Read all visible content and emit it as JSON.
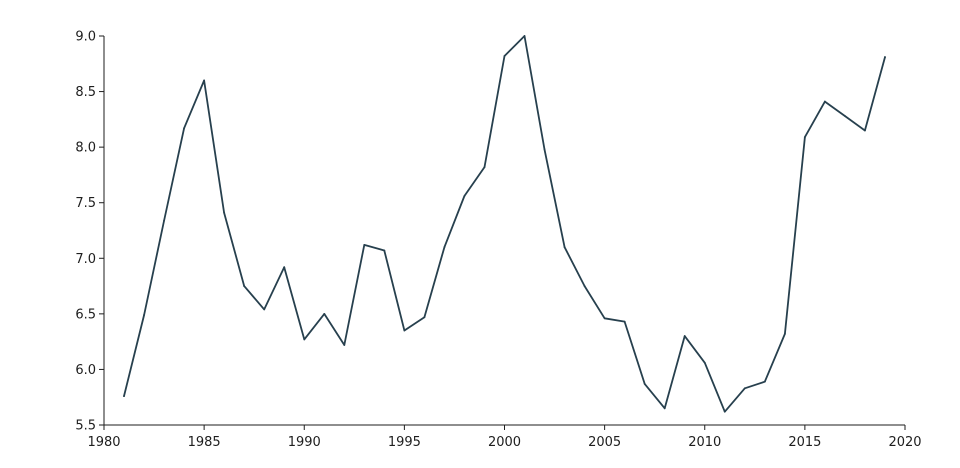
{
  "chart_data": {
    "type": "line",
    "title": "",
    "xlabel": "",
    "ylabel": "",
    "xlim": [
      1980,
      2020
    ],
    "ylim": [
      5.5,
      9.0
    ],
    "x_ticks": [
      {
        "value": 1980,
        "label": "1980"
      },
      {
        "value": 1985,
        "label": "1985"
      },
      {
        "value": 1990,
        "label": "1990"
      },
      {
        "value": 1995,
        "label": "1995"
      },
      {
        "value": 2000,
        "label": "2000"
      },
      {
        "value": 2005,
        "label": "2005"
      },
      {
        "value": 2010,
        "label": "2010"
      },
      {
        "value": 2015,
        "label": "2015"
      },
      {
        "value": 2020,
        "label": "2020"
      }
    ],
    "y_ticks": [
      {
        "value": 5.5,
        "label": "5.5"
      },
      {
        "value": 6.0,
        "label": "6.0"
      },
      {
        "value": 6.5,
        "label": "6.5"
      },
      {
        "value": 7.0,
        "label": "7.0"
      },
      {
        "value": 7.5,
        "label": "7.5"
      },
      {
        "value": 8.0,
        "label": "8.0"
      },
      {
        "value": 8.5,
        "label": "8.5"
      },
      {
        "value": 9.0,
        "label": "9.0"
      }
    ],
    "grid": false,
    "legend": "none",
    "line_color": "#27404e",
    "series": [
      {
        "x": [
          1981,
          1982,
          1983,
          1984,
          1985,
          1986,
          1987,
          1988,
          1989,
          1990,
          1991,
          1992,
          1993,
          1994,
          1995,
          1996,
          1997,
          1998,
          1999,
          2000,
          2001,
          2002,
          2003,
          2004,
          2005,
          2006,
          2007,
          2008,
          2009,
          2010,
          2011,
          2012,
          2013,
          2014,
          2015,
          2016,
          2017,
          2018,
          2019
        ],
        "values": [
          5.76,
          6.49,
          7.34,
          8.17,
          8.6,
          7.41,
          6.75,
          6.54,
          6.92,
          6.27,
          6.5,
          6.22,
          7.12,
          7.07,
          6.35,
          6.47,
          7.1,
          7.56,
          7.82,
          8.82,
          9.0,
          7.98,
          7.1,
          6.75,
          6.46,
          6.43,
          5.87,
          5.65,
          6.3,
          6.06,
          5.62,
          5.83,
          5.89,
          6.32,
          8.09,
          8.41,
          8.28,
          8.15,
          8.81
        ]
      }
    ]
  }
}
